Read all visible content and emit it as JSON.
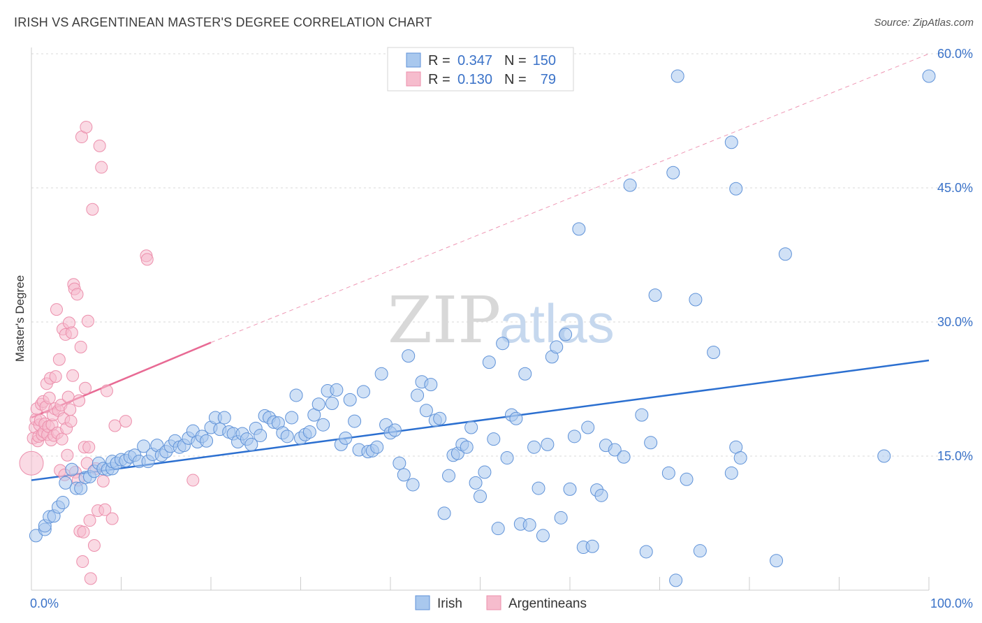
{
  "header": {
    "title": "IRISH VS ARGENTINEAN MASTER'S DEGREE CORRELATION CHART",
    "source": "Source: ZipAtlas.com"
  },
  "watermark": {
    "zip": "ZIP",
    "atlas": "atlas"
  },
  "colors": {
    "irish_fill": "#a9c8ee",
    "irish_stroke": "#5f92d8",
    "irish_line": "#2b6fd0",
    "arg_fill": "#f6bccd",
    "arg_stroke": "#ec8fac",
    "arg_line": "#e86a94",
    "grid": "#d8d8d8",
    "tick_text": "#3a72c8"
  },
  "chart_data": {
    "type": "scatter",
    "title": "IRISH VS ARGENTINEAN MASTER'S DEGREE CORRELATION CHART",
    "xlabel": "",
    "ylabel": "Master's Degree",
    "xlim": [
      0,
      100
    ],
    "ylim": [
      0,
      60
    ],
    "x_tick_labels": [
      {
        "value": 0,
        "label": "0.0%"
      },
      {
        "value": 100,
        "label": "100.0%"
      }
    ],
    "y_tick_labels": [
      {
        "value": 15,
        "label": "15.0%"
      },
      {
        "value": 30,
        "label": "30.0%"
      },
      {
        "value": 45,
        "label": "45.0%"
      },
      {
        "value": 60,
        "label": "60.0%"
      }
    ],
    "legend": {
      "entries": [
        {
          "r_label": "R =",
          "r_value": "0.347",
          "n_label": "N =",
          "n_value": "150"
        },
        {
          "r_label": "R =",
          "r_value": "0.130",
          "n_label": "N =",
          "n_value": "79"
        }
      ]
    },
    "series": [
      {
        "name": "Irish",
        "regression": {
          "x": [
            0,
            100
          ],
          "y": [
            12.3,
            25.7
          ]
        },
        "points": [
          [
            0.5,
            6.1
          ],
          [
            1.5,
            6.8
          ],
          [
            1.5,
            7.2
          ],
          [
            2,
            8.2
          ],
          [
            2.5,
            8.3
          ],
          [
            3,
            9.3
          ],
          [
            3.5,
            9.8
          ],
          [
            3.8,
            12.0
          ],
          [
            4.5,
            13.5
          ],
          [
            5,
            11.4
          ],
          [
            5.5,
            11.4
          ],
          [
            6,
            12.6
          ],
          [
            6.5,
            12.7
          ],
          [
            7,
            13.3
          ],
          [
            7.5,
            14.2
          ],
          [
            8,
            13.6
          ],
          [
            8.5,
            13.5
          ],
          [
            9,
            13.6
          ],
          [
            9,
            14.4
          ],
          [
            9.5,
            14.2
          ],
          [
            10,
            14.6
          ],
          [
            10.5,
            14.5
          ],
          [
            11,
            14.9
          ],
          [
            11.5,
            15.1
          ],
          [
            12,
            14.4
          ],
          [
            12.5,
            16.1
          ],
          [
            13,
            14.4
          ],
          [
            13.5,
            15.2
          ],
          [
            14,
            16.2
          ],
          [
            14.5,
            15.1
          ],
          [
            15,
            15.5
          ],
          [
            15.5,
            16.1
          ],
          [
            16,
            16.7
          ],
          [
            16.5,
            16.0
          ],
          [
            17,
            16.2
          ],
          [
            17.5,
            17.0
          ],
          [
            18,
            17.8
          ],
          [
            18.5,
            16.6
          ],
          [
            19,
            17.2
          ],
          [
            19.5,
            16.7
          ],
          [
            20,
            18.2
          ],
          [
            20.5,
            19.3
          ],
          [
            21,
            18.0
          ],
          [
            21.5,
            19.3
          ],
          [
            22,
            17.7
          ],
          [
            22.5,
            17.5
          ],
          [
            23,
            16.6
          ],
          [
            23.5,
            17.5
          ],
          [
            24,
            16.9
          ],
          [
            24.5,
            16.3
          ],
          [
            25,
            18.1
          ],
          [
            25.5,
            17.3
          ],
          [
            26,
            19.5
          ],
          [
            26.5,
            19.3
          ],
          [
            27,
            18.8
          ],
          [
            27.5,
            18.7
          ],
          [
            28,
            17.6
          ],
          [
            28.5,
            17.2
          ],
          [
            29,
            19.3
          ],
          [
            29.5,
            21.8
          ],
          [
            30,
            17.0
          ],
          [
            30.5,
            17.4
          ],
          [
            31,
            17.7
          ],
          [
            31.5,
            19.6
          ],
          [
            32,
            20.8
          ],
          [
            32.5,
            18.5
          ],
          [
            33,
            22.3
          ],
          [
            33.5,
            20.9
          ],
          [
            34,
            22.4
          ],
          [
            34.5,
            16.3
          ],
          [
            35,
            17.0
          ],
          [
            35.5,
            21.3
          ],
          [
            36,
            18.9
          ],
          [
            36.5,
            15.7
          ],
          [
            37,
            22.2
          ],
          [
            37.5,
            15.5
          ],
          [
            38,
            15.6
          ],
          [
            38.5,
            16.0
          ],
          [
            39,
            24.2
          ],
          [
            39.5,
            18.5
          ],
          [
            40,
            17.6
          ],
          [
            40.5,
            17.9
          ],
          [
            41,
            14.2
          ],
          [
            41.5,
            12.9
          ],
          [
            42,
            26.2
          ],
          [
            42.5,
            11.8
          ],
          [
            43,
            21.8
          ],
          [
            43.5,
            23.3
          ],
          [
            44,
            20.1
          ],
          [
            44.5,
            23.0
          ],
          [
            45,
            19.0
          ],
          [
            45.5,
            19.2
          ],
          [
            46,
            8.6
          ],
          [
            46.5,
            12.8
          ],
          [
            47,
            15.1
          ],
          [
            47.5,
            15.3
          ],
          [
            48,
            16.3
          ],
          [
            48.5,
            16.0
          ],
          [
            49,
            18.2
          ],
          [
            49.5,
            12.0
          ],
          [
            50,
            10.5
          ],
          [
            50.5,
            13.2
          ],
          [
            51,
            25.5
          ],
          [
            51.5,
            16.9
          ],
          [
            52,
            6.9
          ],
          [
            52.5,
            27.6
          ],
          [
            53,
            14.8
          ],
          [
            53.5,
            19.6
          ],
          [
            54,
            19.2
          ],
          [
            54.5,
            7.4
          ],
          [
            55,
            24.2
          ],
          [
            55.5,
            7.3
          ],
          [
            56,
            16.0
          ],
          [
            56.5,
            11.4
          ],
          [
            57,
            6.1
          ],
          [
            57.5,
            16.3
          ],
          [
            58,
            26.1
          ],
          [
            58.5,
            27.2
          ],
          [
            59,
            8.1
          ],
          [
            59.5,
            28.6
          ],
          [
            60,
            11.3
          ],
          [
            60.5,
            17.2
          ],
          [
            61,
            40.4
          ],
          [
            61.5,
            4.8
          ],
          [
            62,
            18.2
          ],
          [
            62.5,
            4.9
          ],
          [
            63,
            11.2
          ],
          [
            63.5,
            10.6
          ],
          [
            64,
            16.2
          ],
          [
            65,
            15.7
          ],
          [
            66,
            14.9
          ],
          [
            66.7,
            45.3
          ],
          [
            68,
            19.6
          ],
          [
            68.5,
            4.3
          ],
          [
            69,
            16.5
          ],
          [
            69.5,
            33.0
          ],
          [
            71,
            13.1
          ],
          [
            71.5,
            46.7
          ],
          [
            71.8,
            1.1
          ],
          [
            72,
            57.5
          ],
          [
            73,
            12.4
          ],
          [
            74,
            32.5
          ],
          [
            74.5,
            4.4
          ],
          [
            76,
            26.6
          ],
          [
            78,
            13.1
          ],
          [
            78.5,
            16.0
          ],
          [
            79,
            14.8
          ],
          [
            78,
            50.1
          ],
          [
            78.5,
            44.9
          ],
          [
            83,
            3.3
          ],
          [
            84,
            37.6
          ],
          [
            95,
            15.0
          ],
          [
            100,
            57.5
          ]
        ]
      },
      {
        "name": "Argentineans",
        "regression": {
          "x": [
            0,
            20
          ],
          "y": [
            19.3,
            27.7
          ],
          "extension": {
            "x": [
              20,
              100
            ],
            "y": [
              27.7,
              60.0
            ]
          }
        },
        "points": [
          [
            0,
            14.2
          ],
          [
            0.2,
            17.0
          ],
          [
            0.4,
            18.2
          ],
          [
            0.5,
            19.1
          ],
          [
            0.6,
            20.3
          ],
          [
            0.7,
            16.7
          ],
          [
            0.8,
            17.2
          ],
          [
            0.9,
            18.5
          ],
          [
            1.0,
            19.0
          ],
          [
            1.1,
            20.8
          ],
          [
            1.2,
            17.4
          ],
          [
            1.3,
            21.1
          ],
          [
            1.4,
            17.7
          ],
          [
            1.5,
            18.6
          ],
          [
            1.6,
            20.5
          ],
          [
            1.7,
            23.1
          ],
          [
            1.8,
            17.4
          ],
          [
            1.9,
            18.3
          ],
          [
            2.0,
            21.5
          ],
          [
            2.1,
            23.7
          ],
          [
            2.2,
            16.8
          ],
          [
            2.3,
            18.5
          ],
          [
            2.4,
            19.6
          ],
          [
            2.5,
            17.3
          ],
          [
            2.6,
            20.3
          ],
          [
            2.7,
            23.9
          ],
          [
            2.8,
            31.4
          ],
          [
            2.9,
            17.6
          ],
          [
            3.0,
            20.1
          ],
          [
            3.1,
            25.8
          ],
          [
            3.2,
            13.4
          ],
          [
            3.3,
            20.7
          ],
          [
            3.4,
            16.9
          ],
          [
            3.5,
            29.2
          ],
          [
            3.6,
            19.2
          ],
          [
            3.7,
            12.9
          ],
          [
            3.8,
            28.6
          ],
          [
            3.9,
            18.1
          ],
          [
            4.0,
            15.1
          ],
          [
            4.1,
            21.6
          ],
          [
            4.2,
            29.9
          ],
          [
            4.3,
            20.2
          ],
          [
            4.4,
            18.9
          ],
          [
            4.5,
            28.8
          ],
          [
            4.6,
            24.0
          ],
          [
            4.7,
            34.2
          ],
          [
            4.8,
            33.7
          ],
          [
            4.9,
            13.2
          ],
          [
            5.1,
            33.1
          ],
          [
            5.2,
            12.3
          ],
          [
            5.3,
            21.2
          ],
          [
            5.4,
            6.6
          ],
          [
            5.5,
            27.2
          ],
          [
            5.6,
            50.7
          ],
          [
            5.7,
            3.2
          ],
          [
            5.8,
            6.5
          ],
          [
            5.9,
            16.0
          ],
          [
            6.0,
            22.6
          ],
          [
            6.1,
            51.8
          ],
          [
            6.2,
            14.2
          ],
          [
            6.3,
            30.1
          ],
          [
            6.4,
            16.0
          ],
          [
            6.5,
            7.8
          ],
          [
            6.6,
            1.3
          ],
          [
            6.8,
            42.6
          ],
          [
            7.0,
            5.0
          ],
          [
            7.2,
            13.6
          ],
          [
            7.4,
            8.9
          ],
          [
            7.6,
            49.7
          ],
          [
            7.8,
            47.3
          ],
          [
            8.0,
            12.2
          ],
          [
            8.2,
            9.0
          ],
          [
            8.4,
            22.3
          ],
          [
            9.0,
            8.0
          ],
          [
            9.3,
            18.4
          ],
          [
            10.5,
            18.9
          ],
          [
            12.8,
            37.4
          ],
          [
            12.9,
            37.0
          ],
          [
            18.0,
            12.3
          ]
        ]
      }
    ]
  },
  "bottom_legend": {
    "irish": "Irish",
    "argentineans": "Argentineans"
  }
}
